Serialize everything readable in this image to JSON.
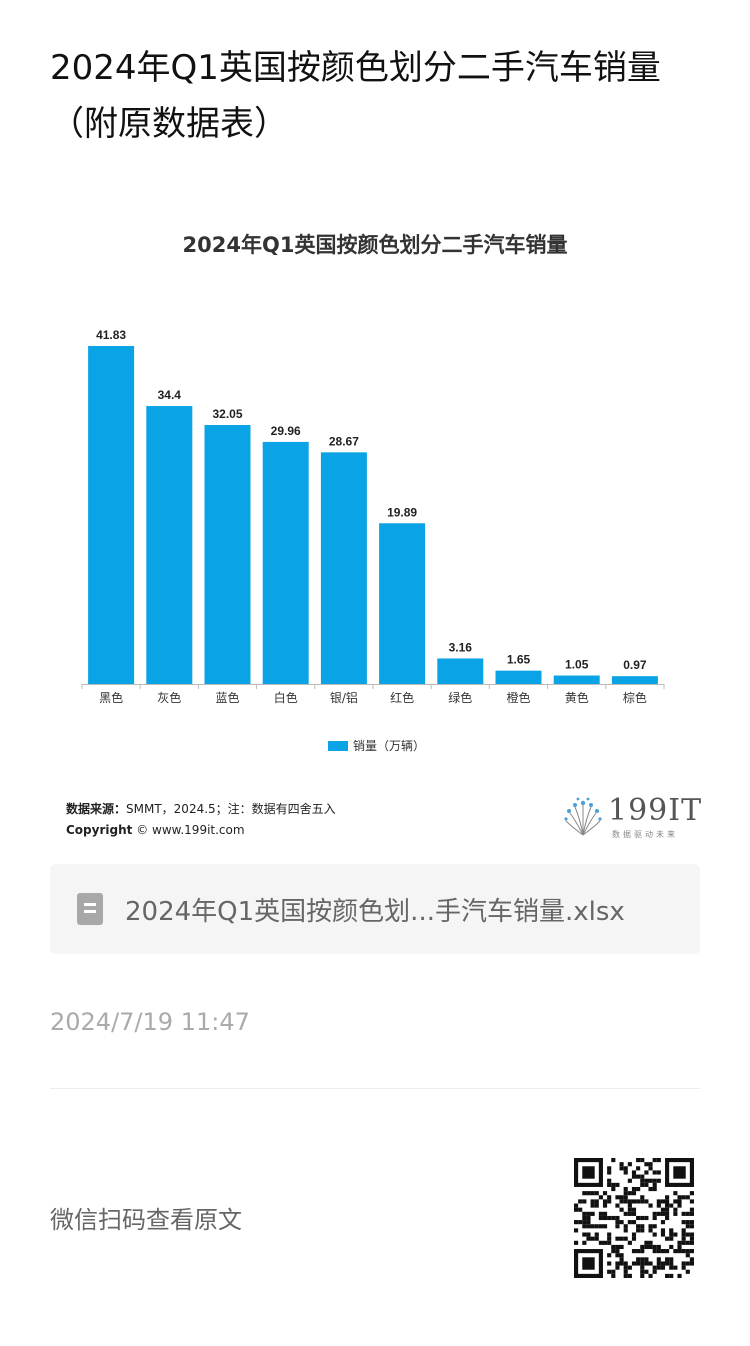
{
  "article": {
    "title": "2024年Q1英国按颜色划分二手汽车销量（附原数据表）"
  },
  "chart_data": {
    "type": "bar",
    "title": "2024年Q1英国按颜色划分二手汽车销量",
    "categories": [
      "黑色",
      "灰色",
      "蓝色",
      "白色",
      "银/铝",
      "红色",
      "绿色",
      "橙色",
      "黄色",
      "棕色"
    ],
    "series": [
      {
        "name": "销量（万辆）",
        "values": [
          41.83,
          34.4,
          32.05,
          29.96,
          28.67,
          19.89,
          3.16,
          1.65,
          1.05,
          0.97
        ]
      }
    ],
    "value_labels": [
      "41.83",
      "34.4",
      "32.05",
      "29.96",
      "28.67",
      "19.89",
      "3.16",
      "1.65",
      "1.05",
      "0.97"
    ],
    "color": "#0aa3e6",
    "ylim": [
      0,
      45
    ],
    "grid": false,
    "legend_position": "bottom"
  },
  "source": {
    "label": "数据来源：",
    "text": "SMMT，2024.5；注：数据有四舍五入",
    "copyright_label": "Copyright",
    "copyright_text": "© www.199it.com"
  },
  "logo": {
    "text": "199IT",
    "subtext": "数据驱动未来"
  },
  "attachment": {
    "icon": "spreadsheet-file-icon",
    "filename": "2024年Q1英国按颜色划...手汽车销量.xlsx"
  },
  "meta": {
    "timestamp": "2024/7/19 11:47"
  },
  "footer": {
    "qr_hint": "微信扫码查看原文"
  }
}
